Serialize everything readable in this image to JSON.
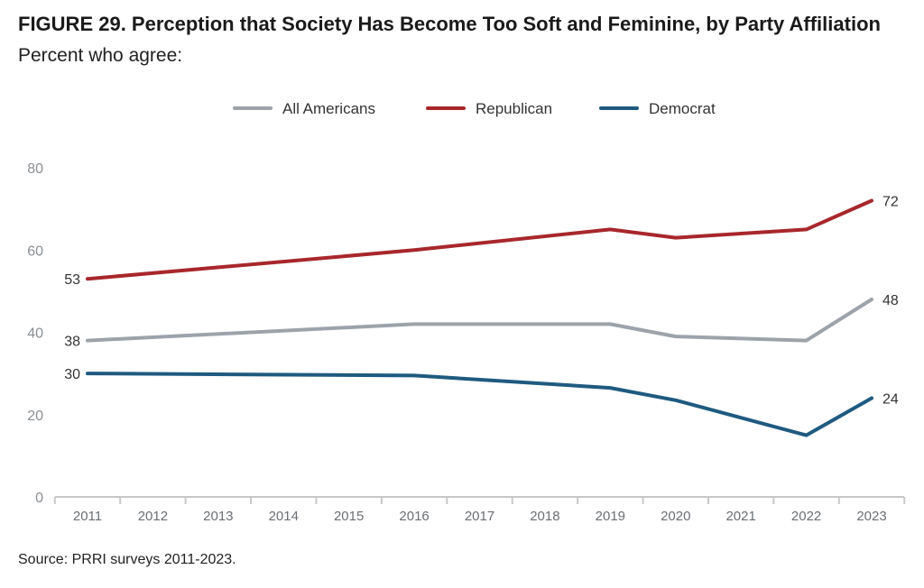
{
  "figure": {
    "title": "FIGURE 29.  Perception that Society Has Become Too Soft and Feminine, by Party Affiliation",
    "subtitle": "Percent who agree:",
    "source": "Source: PRRI surveys 2011-2023."
  },
  "chart_data": {
    "type": "line",
    "categories": [
      "2011",
      "2012",
      "2013",
      "2014",
      "2015",
      "2016",
      "2017",
      "2018",
      "2019",
      "2020",
      "2021",
      "2022",
      "2023"
    ],
    "ylim": [
      0,
      80
    ],
    "yticks": [
      0,
      20,
      40,
      60,
      80
    ],
    "grid": false,
    "legend_position": "top-center",
    "series": [
      {
        "name": "All Americans",
        "color": "#9ca3aa",
        "points": [
          [
            2011,
            38
          ],
          [
            2016,
            42
          ],
          [
            2019,
            42
          ],
          [
            2020,
            39
          ],
          [
            2022,
            38
          ],
          [
            2023,
            48
          ]
        ],
        "labels": {
          "start": "38",
          "end": "48"
        }
      },
      {
        "name": "Republican",
        "color": "#a8272b",
        "points": [
          [
            2011,
            53
          ],
          [
            2016,
            60
          ],
          [
            2019,
            65
          ],
          [
            2020,
            63
          ],
          [
            2022,
            65
          ],
          [
            2023,
            72
          ]
        ],
        "labels": {
          "start": "53",
          "end": "72"
        }
      },
      {
        "name": "Democrat",
        "color": "#1f5a80",
        "points": [
          [
            2011,
            30
          ],
          [
            2016,
            29.5
          ],
          [
            2019,
            26.5
          ],
          [
            2020,
            23.5
          ],
          [
            2022,
            15
          ],
          [
            2023,
            24
          ]
        ],
        "labels": {
          "start": "30",
          "end": "24"
        }
      }
    ]
  }
}
